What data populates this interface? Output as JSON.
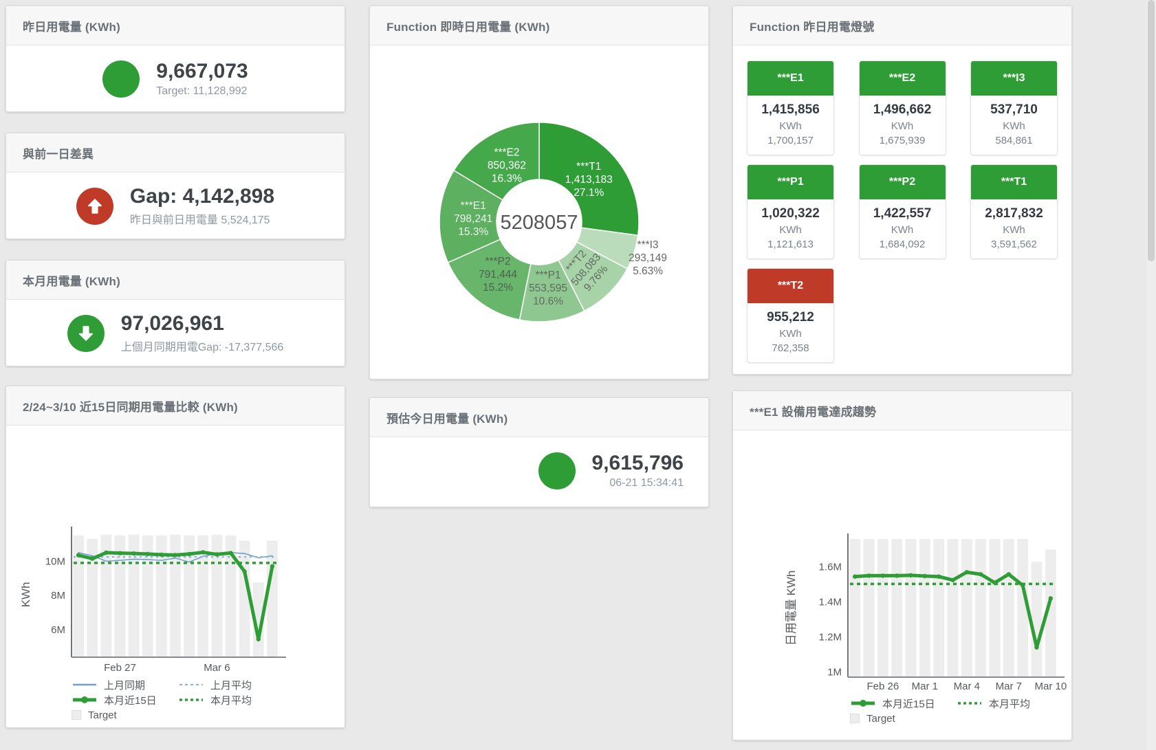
{
  "panels": {
    "yesterday": {
      "title": "昨日用電量 (KWh)",
      "value": "9,667,073",
      "subtitle": "Target: 11,128,992",
      "color": "#2f9d35"
    },
    "day_gap": {
      "title": "與前一日差異",
      "value": "Gap: 4,142,898",
      "subtitle": "昨日與前日用電量 5,524,175",
      "color": "#c03a28"
    },
    "month": {
      "title": "本月用電量 (KWh)",
      "value": "97,026,961",
      "subtitle": "上個月同期用電Gap: -17,377,566",
      "color": "#2f9d35"
    },
    "estimate": {
      "title": "預估今日用電量 (KWh)",
      "value": "9,615,796",
      "subtitle": "06-21 15:34:41",
      "color": "#2f9d35"
    },
    "realtime_pie": {
      "title": "Function 即時日用電量 (KWh)"
    },
    "lights": {
      "title": "Function 昨日用電燈號",
      "unit": "KWh",
      "tiles": [
        {
          "name": "***E1",
          "value": "1,415,856",
          "target": "1,700,157",
          "color": "#2f9d35"
        },
        {
          "name": "***E2",
          "value": "1,496,662",
          "target": "1,675,939",
          "color": "#2f9d35"
        },
        {
          "name": "***I3",
          "value": "537,710",
          "target": "584,861",
          "color": "#2f9d35"
        },
        {
          "name": "***P1",
          "value": "1,020,322",
          "target": "1,121,613",
          "color": "#2f9d35"
        },
        {
          "name": "***P2",
          "value": "1,422,557",
          "target": "1,684,092",
          "color": "#2f9d35"
        },
        {
          "name": "***T1",
          "value": "2,817,832",
          "target": "3,591,562",
          "color": "#2f9d35"
        },
        {
          "name": "***T2",
          "value": "955,212",
          "target": "762,358",
          "color": "#c03a28"
        }
      ]
    },
    "compare": {
      "title": "2/24~3/10 近15日同期用電量比較 (KWh)"
    },
    "trend": {
      "title": "***E1 設備用電達成趨勢"
    }
  },
  "chart_data": [
    {
      "type": "pie",
      "panel": "realtime_pie",
      "center_total": "5208057",
      "slices": [
        {
          "name": "***T1",
          "value": 1413183,
          "value_label": "1,413,183",
          "pct_label": "27.1%",
          "color": "#2e9d36",
          "label_color": "#ffffff"
        },
        {
          "name": "***I3",
          "value": 293149,
          "value_label": "293,149",
          "pct_label": "5.63%",
          "color": "#badcbb",
          "label_color": "#666666",
          "label_outside": true
        },
        {
          "name": "***T2",
          "value": 508083,
          "value_label": "508,083",
          "pct_label": "9.76%",
          "color": "#a8d3a9",
          "label_color": "#5f6b5f",
          "label_rotate": -49
        },
        {
          "name": "***P1",
          "value": 553595,
          "value_label": "553,595",
          "pct_label": "10.6%",
          "color": "#8fc791",
          "label_color": "#5f6b5f"
        },
        {
          "name": "***P2",
          "value": 791444,
          "value_label": "791,444",
          "pct_label": "15.2%",
          "color": "#68b66b",
          "label_color": "#4f5f50"
        },
        {
          "name": "***E1",
          "value": 798241,
          "value_label": "798,241",
          "pct_label": "15.3%",
          "color": "#5db060",
          "label_color": "#eef4ee"
        },
        {
          "name": "***E2",
          "value": 850362,
          "value_label": "850,362",
          "pct_label": "16.3%",
          "color": "#45a84b",
          "label_color": "#ffffff"
        }
      ]
    },
    {
      "type": "line",
      "panel": "compare",
      "ylabel": "KWh",
      "ylim": [
        4400000,
        11700000
      ],
      "yticks": [
        {
          "value": 6000000,
          "label": "6M"
        },
        {
          "value": 8000000,
          "label": "8M"
        },
        {
          "value": 10000000,
          "label": "10M"
        }
      ],
      "xticks": [
        {
          "index": 3,
          "label": "Feb 27"
        },
        {
          "index": 10,
          "label": "Mar 6"
        }
      ],
      "series": [
        {
          "name": "Target",
          "kind": "bar",
          "color": "#ededed",
          "values": [
            11500000,
            11300000,
            11550000,
            11500000,
            11550000,
            11500000,
            11500000,
            11550000,
            11500000,
            11500000,
            11550000,
            11500000,
            11200000,
            8760000,
            11200000
          ]
        },
        {
          "name": "上月同期",
          "kind": "line",
          "color": "#6f9fca",
          "width": 1.6,
          "values": [
            10500000,
            10320000,
            10000000,
            10050000,
            10120000,
            10100000,
            10050000,
            10180000,
            9950000,
            10280000,
            10450000,
            10500000,
            10450000,
            10200000,
            10320000
          ]
        },
        {
          "name": "上月平均",
          "kind": "avg",
          "color": "#85b3d9",
          "width": 2.2,
          "value": 10250000
        },
        {
          "name": "本月平均",
          "kind": "avg",
          "color": "#2f9d35",
          "width": 3.6,
          "value": 9900000
        },
        {
          "name": "本月近15日",
          "kind": "line",
          "thick": true,
          "color": "#2f9d35",
          "width": 5,
          "values": [
            10350000,
            10150000,
            10500000,
            10470000,
            10450000,
            10420000,
            10380000,
            10360000,
            10420000,
            10520000,
            10400000,
            10480000,
            9400000,
            5450000,
            9700000
          ]
        }
      ],
      "legend": [
        [
          "上月同期",
          "上月平均"
        ],
        [
          "本月近15日",
          "本月平均"
        ],
        [
          "Target"
        ]
      ]
    },
    {
      "type": "line",
      "panel": "trend",
      "ylabel": "日用電量 KWh",
      "ylim": [
        970000,
        1760000
      ],
      "yticks": [
        {
          "value": 1000000,
          "label": "1M"
        },
        {
          "value": 1200000,
          "label": "1.2M"
        },
        {
          "value": 1400000,
          "label": "1.4M"
        },
        {
          "value": 1600000,
          "label": "1.6M"
        }
      ],
      "xticks": [
        {
          "index": 2,
          "label": "Feb 26"
        },
        {
          "index": 5,
          "label": "Mar 1"
        },
        {
          "index": 8,
          "label": "Mar 4"
        },
        {
          "index": 11,
          "label": "Mar 7"
        },
        {
          "index": 14,
          "label": "Mar 10"
        }
      ],
      "series": [
        {
          "name": "Target",
          "kind": "bar",
          "color": "#ededed",
          "values": [
            1760000,
            1760000,
            1760000,
            1760000,
            1760000,
            1760000,
            1760000,
            1760000,
            1760000,
            1760000,
            1760000,
            1760000,
            1760000,
            1630000,
            1700000
          ]
        },
        {
          "name": "本月平均",
          "kind": "avg",
          "color": "#2f9d35",
          "width": 3.6,
          "value": 1503000
        },
        {
          "name": "本月近15日",
          "kind": "line",
          "thick": true,
          "color": "#2f9d35",
          "width": 5,
          "values": [
            1545000,
            1550000,
            1550000,
            1550000,
            1552000,
            1548000,
            1545000,
            1525000,
            1570000,
            1558000,
            1510000,
            1558000,
            1495000,
            1140000,
            1420000
          ]
        }
      ],
      "legend": [
        [
          "本月近15日",
          "本月平均"
        ],
        [
          "Target"
        ]
      ]
    }
  ]
}
